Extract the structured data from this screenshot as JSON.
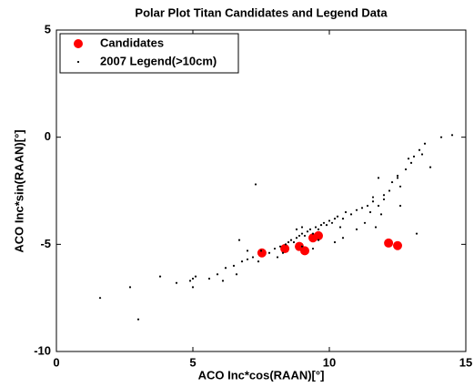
{
  "chart_data": {
    "type": "scatter",
    "title": "Polar Plot Titan Candidates and Legend Data",
    "x_label": "ACO Inc*cos(RAAN)[°]",
    "y_label": "ACO Inc*sin(RAAN)[°]",
    "xlim": [
      0,
      15
    ],
    "ylim": [
      -10,
      5
    ],
    "xticks": [
      0,
      5,
      10,
      15
    ],
    "yticks": [
      -10,
      -5,
      0,
      5
    ],
    "grid": false,
    "legend": "upper left",
    "series": [
      {
        "name": "Candidates",
        "color": "#ff0000",
        "marker": "large-dot",
        "x": [
          7.53,
          8.37,
          8.9,
          9.1,
          9.4,
          9.6,
          12.17,
          12.5
        ],
        "values": [
          -5.4,
          -5.2,
          -5.1,
          -5.3,
          -4.7,
          -4.6,
          -4.94,
          -5.06
        ]
      },
      {
        "name": "2007 Legend(>10cm)",
        "color": "#000000",
        "marker": "small-dot",
        "x": [
          1.6,
          2.7,
          3.0,
          4.9,
          5.0,
          5.1,
          4.4,
          5.0,
          5.6,
          5.9,
          6.2,
          6.5,
          6.6,
          6.8,
          7.0,
          7.2,
          7.3,
          7.0,
          7.4,
          7.8,
          8.0,
          8.2,
          8.4,
          8.5,
          8.6,
          8.7,
          8.8,
          8.9,
          9.0,
          9.1,
          9.2,
          9.3,
          9.4,
          9.5,
          9.6,
          9.7,
          9.8,
          9.9,
          10.0,
          10.1,
          10.2,
          10.3,
          10.5,
          10.6,
          10.8,
          11.0,
          11.2,
          11.4,
          11.5,
          11.6,
          11.8,
          12.0,
          12.2,
          12.3,
          12.5,
          12.6,
          12.8,
          13.0,
          13.1,
          13.3,
          13.5,
          13.4,
          13.7,
          14.1,
          14.5,
          12.5,
          11.8,
          6.7,
          8.3,
          9.0,
          9.4,
          10.5,
          10.2,
          11.0,
          11.3,
          11.7,
          13.2,
          12.6,
          7.5,
          8.1,
          3.8,
          6.1,
          9.6,
          10.4,
          11.9,
          12.9,
          11.6,
          9.0,
          8.8,
          12.0
        ],
        "values": [
          -7.5,
          -7.0,
          -8.5,
          -6.7,
          -6.6,
          -6.5,
          -6.8,
          -7.0,
          -6.6,
          -6.4,
          -6.1,
          -6.0,
          -6.4,
          -5.8,
          -5.7,
          -5.6,
          -2.2,
          -5.3,
          -5.8,
          -5.4,
          -5.2,
          -5.1,
          -5.0,
          -4.9,
          -4.8,
          -4.9,
          -4.7,
          -4.6,
          -4.5,
          -4.6,
          -4.4,
          -4.3,
          -4.5,
          -4.2,
          -4.3,
          -4.1,
          -4.0,
          -4.1,
          -3.9,
          -4.0,
          -3.8,
          -3.7,
          -3.8,
          -3.5,
          -3.6,
          -3.4,
          -3.3,
          -3.2,
          -3.5,
          -3.0,
          -3.2,
          -2.9,
          -2.5,
          -2.1,
          -1.8,
          -2.3,
          -1.5,
          -1.2,
          -0.9,
          -0.6,
          -0.3,
          -0.8,
          -1.4,
          0.0,
          0.1,
          -1.9,
          -1.9,
          -4.8,
          -5.4,
          -5.1,
          -5.2,
          -4.7,
          -4.9,
          -4.3,
          -4.0,
          -4.2,
          -4.5,
          -3.2,
          -5.3,
          -5.6,
          -6.5,
          -6.7,
          -4.8,
          -4.2,
          -3.6,
          -1.0,
          -2.8,
          -4.2,
          -4.3,
          -2.7
        ]
      }
    ]
  }
}
